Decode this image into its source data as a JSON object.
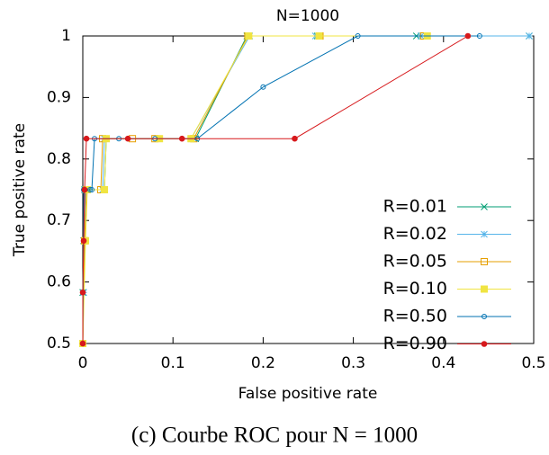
{
  "chart_data": {
    "type": "line",
    "title": "N=1000",
    "x_label": "False positive rate",
    "y_label": "True positive rate",
    "caption": "(c) Courbe ROC pour N = 1000",
    "xlim": [
      0,
      0.5
    ],
    "ylim": [
      0.5,
      1
    ],
    "xticks": [
      0,
      0.1,
      0.2,
      0.3,
      0.4,
      0.5
    ],
    "yticks": [
      0.5,
      0.6,
      0.7,
      0.8,
      0.9,
      1
    ],
    "grid": false,
    "legend": "lower right",
    "series": [
      {
        "name": "R=0.01",
        "color": "#009e73",
        "marker": "x",
        "x": [
          0,
          0,
          0.001,
          0.002,
          0.024,
          0.026,
          0.12,
          0.125,
          0.182,
          0.26,
          0.37,
          0.495
        ],
        "values": [
          0.5,
          0.583,
          0.667,
          0.75,
          0.75,
          0.833,
          0.833,
          0.833,
          1,
          1,
          1,
          1
        ]
      },
      {
        "name": "R=0.02",
        "color": "#56b4e9",
        "marker": "star",
        "x": [
          0,
          0.001,
          0.002,
          0.003,
          0.022,
          0.024,
          0.12,
          0.185,
          0.258,
          0.375,
          0.495
        ],
        "values": [
          0.5,
          0.583,
          0.667,
          0.75,
          0.75,
          0.833,
          0.833,
          1,
          1,
          1,
          1
        ]
      },
      {
        "name": "R=0.05",
        "color": "#e69f00",
        "marker": "open-square",
        "x": [
          0,
          0.002,
          0.004,
          0.02,
          0.022,
          0.055,
          0.08,
          0.123,
          0.183,
          0.263,
          0.378
        ],
        "values": [
          0.5,
          0.667,
          0.75,
          0.75,
          0.833,
          0.833,
          0.833,
          0.833,
          1,
          1,
          1
        ]
      },
      {
        "name": "R=0.10",
        "color": "#f0e442",
        "marker": "filled-square",
        "x": [
          0,
          0.003,
          0.005,
          0.024,
          0.026,
          0.085,
          0.12,
          0.184,
          0.262,
          0.382
        ],
        "values": [
          0.5,
          0.667,
          0.75,
          0.75,
          0.833,
          0.833,
          0.833,
          1,
          1,
          1
        ]
      },
      {
        "name": "R=0.50",
        "color": "#0072b2",
        "marker": "open-circle",
        "x": [
          0,
          0.001,
          0.008,
          0.01,
          0.013,
          0.04,
          0.08,
          0.127,
          0.2,
          0.305,
          0.44
        ],
        "values": [
          0.5,
          0.75,
          0.75,
          0.75,
          0.833,
          0.833,
          0.833,
          0.833,
          0.917,
          1,
          1
        ]
      },
      {
        "name": "R=0.90",
        "color": "#d7191c",
        "marker": "filled-circle",
        "x": [
          0,
          0,
          0.001,
          0.002,
          0.004,
          0.05,
          0.11,
          0.235,
          0.427
        ],
        "values": [
          0.5,
          0.583,
          0.667,
          0.75,
          0.833,
          0.833,
          0.833,
          0.833,
          1
        ]
      }
    ]
  }
}
